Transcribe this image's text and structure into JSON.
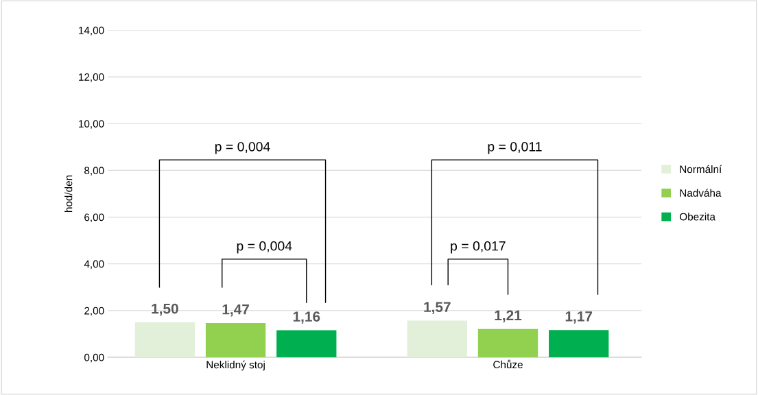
{
  "chart_data": {
    "type": "bar",
    "ylabel": "hod/den",
    "categories": [
      "Neklidný stoj",
      "Chůze"
    ],
    "series": [
      {
        "name": "Normální",
        "color": "#e2efd9",
        "values": [
          1.5,
          1.57
        ],
        "value_labels": [
          "1,50",
          "1,57"
        ]
      },
      {
        "name": "Nadváha",
        "color": "#92d050",
        "values": [
          1.47,
          1.21
        ],
        "value_labels": [
          "1,47",
          "1,21"
        ]
      },
      {
        "name": "Obezita",
        "color": "#00b050",
        "values": [
          1.16,
          1.17
        ],
        "value_labels": [
          "1,16",
          "1,17"
        ]
      }
    ],
    "ylim": [
      0,
      14
    ],
    "yticks": [
      {
        "value": 0,
        "label": "0,00"
      },
      {
        "value": 2,
        "label": "2,00"
      },
      {
        "value": 4,
        "label": "4,00"
      },
      {
        "value": 6,
        "label": "6,00"
      },
      {
        "value": 8,
        "label": "8,00"
      },
      {
        "value": 10,
        "label": "10,00"
      },
      {
        "value": 12,
        "label": "12,00"
      },
      {
        "value": 14,
        "label": "14,00"
      }
    ],
    "grid": "y",
    "legend": "right",
    "annotations": [
      "p = 0,004",
      "p = 0,004",
      "p = 0,011",
      "p = 0,017"
    ]
  }
}
